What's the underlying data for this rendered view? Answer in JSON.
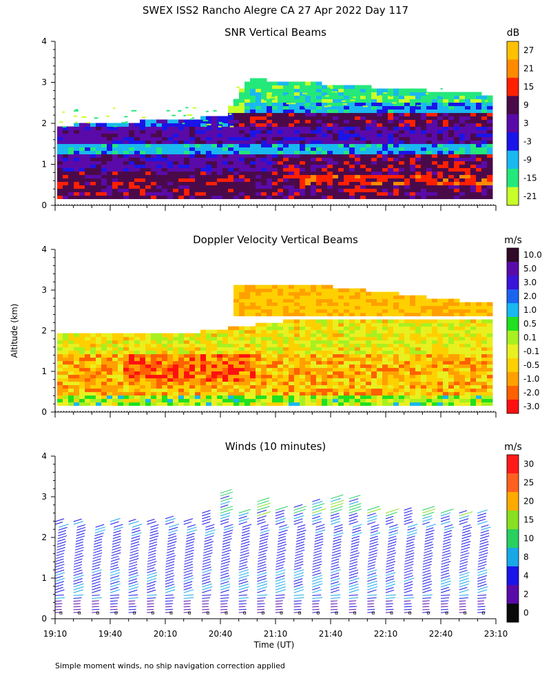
{
  "figure_title": "SWEX ISS2 Rancho Alegre CA  27 Apr 2022 Day 117",
  "shared": {
    "ylabel": "Altitude (km)",
    "xlabel": "Time (UT)",
    "y_ticks": [
      "0",
      "1",
      "2",
      "3",
      "4"
    ],
    "x_ticks": [
      "19:10",
      "19:40",
      "20:10",
      "20:40",
      "21:10",
      "21:40",
      "22:10",
      "22:40",
      "23:10"
    ],
    "xlim": [
      "19:10",
      "23:10"
    ],
    "ylim_km": [
      0,
      4
    ]
  },
  "footnote": "Simple moment winds, no ship navigation correction applied",
  "chart_data": [
    {
      "type": "heatmap",
      "title": "SNR Vertical Beams",
      "unit": "dB",
      "ylim": [
        0,
        4
      ],
      "colorbar": {
        "labels": [
          "27",
          "21",
          "15",
          "9",
          "3",
          "-3",
          "-9",
          "-15",
          "-21"
        ],
        "colors": [
          "#ffc000",
          "#ff8a00",
          "#ff2000",
          "#4a0a4a",
          "#5a0aa8",
          "#1a14e8",
          "#1ab8f0",
          "#24e87a",
          "#c8ff28"
        ]
      },
      "layers": [
        {
          "band": "low-level maximum",
          "altitude_km": [
            0.3,
            0.8
          ],
          "snr_db": "15 to 21",
          "start": "19:10",
          "end": "23:10"
        },
        {
          "band": "lower layer",
          "altitude_km": [
            0.2,
            1.2
          ],
          "snr_db": "3 to 9",
          "start": "19:10",
          "end": "23:10"
        },
        {
          "band": "mid layer",
          "altitude_km": [
            1.2,
            1.5
          ],
          "snr_db": "-15 to -9",
          "start": "19:10",
          "end": "23:10"
        },
        {
          "band": "upper inversion",
          "altitude_km": [
            1.5,
            2.2
          ],
          "snr_db": "3 to 9",
          "start": "19:10",
          "end": "23:10"
        },
        {
          "band": "elevated layer",
          "altitude_km": [
            2.2,
            3.0
          ],
          "snr_db": "-21 to -9",
          "start": "20:40",
          "end": "23:10"
        }
      ]
    },
    {
      "type": "heatmap",
      "title": "Doppler Velocity Vertical Beams",
      "unit": "m/s",
      "ylim": [
        0,
        4
      ],
      "colorbar": {
        "labels": [
          "10.0",
          "5.0",
          "3.0",
          "2.0",
          "1.0",
          "0.5",
          "0.1",
          "-0.1",
          "-0.5",
          "-1.0",
          "-2.0",
          "-3.0"
        ],
        "colors": [
          "#300a28",
          "#5a0aa8",
          "#3a14d8",
          "#1a64f0",
          "#18b8f0",
          "#20e020",
          "#a8f020",
          "#e8f020",
          "#ffd000",
          "#ffa000",
          "#ff6000",
          "#ff1010"
        ]
      },
      "layers": [
        {
          "band": "boundary layer",
          "altitude_km": [
            0.2,
            1.9
          ],
          "velocity_ms": "-1.0 to 0.5",
          "start": "19:10",
          "end": "23:10"
        },
        {
          "band": "elevated layer",
          "altitude_km": [
            2.3,
            3.1
          ],
          "velocity_ms": "-1.0 to -0.5",
          "start": "20:40",
          "end": "23:10"
        }
      ]
    },
    {
      "type": "barbs",
      "title": "Winds (10 minutes)",
      "unit": "m/s",
      "ylim": [
        0,
        4
      ],
      "colorbar": {
        "labels": [
          "30",
          "25",
          "20",
          "15",
          "10",
          "8",
          "4",
          "2",
          "0"
        ],
        "colors": [
          "#ff1a1a",
          "#ff6020",
          "#ffaa00",
          "#88e020",
          "#28d060",
          "#18a8e8",
          "#1a14e8",
          "#5a0aa8",
          "#0a0a0a"
        ]
      },
      "profile_times": [
        "19:10",
        "19:20",
        "19:30",
        "19:40",
        "19:50",
        "20:00",
        "20:10",
        "20:20",
        "20:30",
        "20:40",
        "20:50",
        "21:00",
        "21:10",
        "21:20",
        "21:30",
        "21:40",
        "21:50",
        "22:00",
        "22:10",
        "22:20",
        "22:30",
        "22:40",
        "22:50",
        "23:00"
      ],
      "top_altitude_km": [
        2.4,
        2.4,
        2.3,
        2.4,
        2.4,
        2.4,
        2.5,
        2.4,
        2.6,
        3.1,
        2.6,
        2.9,
        2.7,
        2.8,
        2.9,
        3.0,
        3.0,
        2.7,
        2.6,
        2.7,
        2.7,
        2.6,
        2.6,
        2.6
      ],
      "typical_speed_ms": {
        "below_1km": "2 to 10",
        "1_to_2km": "4 to 8",
        "above_2km": "4 to 15"
      }
    }
  ]
}
